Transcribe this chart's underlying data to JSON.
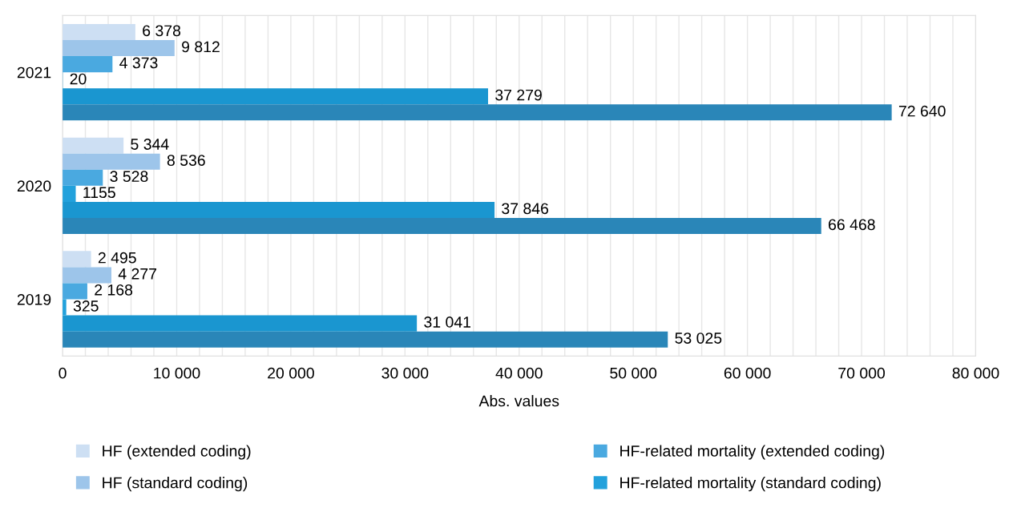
{
  "chart_data": {
    "type": "bar",
    "orientation": "horizontal",
    "xlabel": "Abs. values",
    "categories": [
      "2021",
      "2020",
      "2019"
    ],
    "series": [
      {
        "name": "HF (extended coding)",
        "color": "#cddff3",
        "values": [
          6378,
          5344,
          2495
        ],
        "value_labels": [
          "6 378",
          "5 344",
          "2 495"
        ]
      },
      {
        "name": "HF (standard coding)",
        "color": "#9dc5ea",
        "values": [
          9812,
          8536,
          4277
        ],
        "value_labels": [
          "9 812",
          "8 536",
          "4 277"
        ]
      },
      {
        "name": "HF-related mortality (extended coding)",
        "color": "#4aa9e0",
        "values": [
          4373,
          3528,
          2168
        ],
        "value_labels": [
          "4 373",
          "3 528",
          "2 168"
        ]
      },
      {
        "name": "HF-related mortality (standard coding)",
        "color": "#22a1dc",
        "values": [
          20,
          1155,
          325
        ],
        "value_labels": [
          "20",
          "1155",
          "325"
        ]
      },
      {
        "color": "#1a96d0",
        "values": [
          37279,
          37846,
          31041
        ],
        "value_labels": [
          "37 279",
          "37 846",
          "31 041"
        ]
      },
      {
        "color": "#2a86b8",
        "values": [
          72640,
          66468,
          53025
        ],
        "value_labels": [
          "72 640",
          "66 468",
          "53 025"
        ]
      }
    ],
    "xlim": [
      0,
      80000
    ],
    "xticks": [
      0,
      {
        "value": 2000,
        "label": null
      },
      {
        "value": 4000,
        "label": null
      },
      {
        "value": 6000,
        "label": null
      },
      {
        "value": 8000,
        "label": null
      },
      {
        "value": 10000,
        "label": "10 000"
      },
      {
        "value": 12000,
        "label": null
      },
      {
        "value": 14000,
        "label": null
      },
      {
        "value": 16000,
        "label": null
      },
      {
        "value": 18000,
        "label": null
      },
      {
        "value": 20000,
        "label": "20 000"
      },
      {
        "value": 22000,
        "label": null
      },
      {
        "value": 24000,
        "label": null
      },
      {
        "value": 26000,
        "label": null
      },
      {
        "value": 28000,
        "label": null
      },
      {
        "value": 30000,
        "label": "30 000"
      },
      {
        "value": 32000,
        "label": null
      },
      {
        "value": 34000,
        "label": null
      },
      {
        "value": 36000,
        "label": null
      },
      {
        "value": 38000,
        "label": null
      },
      {
        "value": 40000,
        "label": "40 000"
      },
      {
        "value": 42000,
        "label": null
      },
      {
        "value": 44000,
        "label": null
      },
      {
        "value": 46000,
        "label": null
      },
      {
        "value": 48000,
        "label": null
      },
      {
        "value": 50000,
        "label": "50 000"
      },
      {
        "value": 52000,
        "label": null
      },
      {
        "value": 54000,
        "label": null
      },
      {
        "value": 56000,
        "label": null
      },
      {
        "value": 58000,
        "label": null
      },
      {
        "value": 60000,
        "label": "60 000"
      },
      {
        "value": 62000,
        "label": null
      },
      {
        "value": 64000,
        "label": null
      },
      {
        "value": 66000,
        "label": null
      },
      {
        "value": 68000,
        "label": null
      },
      {
        "value": 70000,
        "label": "70 000"
      },
      {
        "value": 72000,
        "label": null
      },
      {
        "value": 74000,
        "label": null
      },
      {
        "value": 76000,
        "label": null
      },
      {
        "value": 78000,
        "label": null
      },
      {
        "value": 80000,
        "label": "80 000"
      }
    ],
    "grid": "x",
    "legend": "bottom"
  }
}
